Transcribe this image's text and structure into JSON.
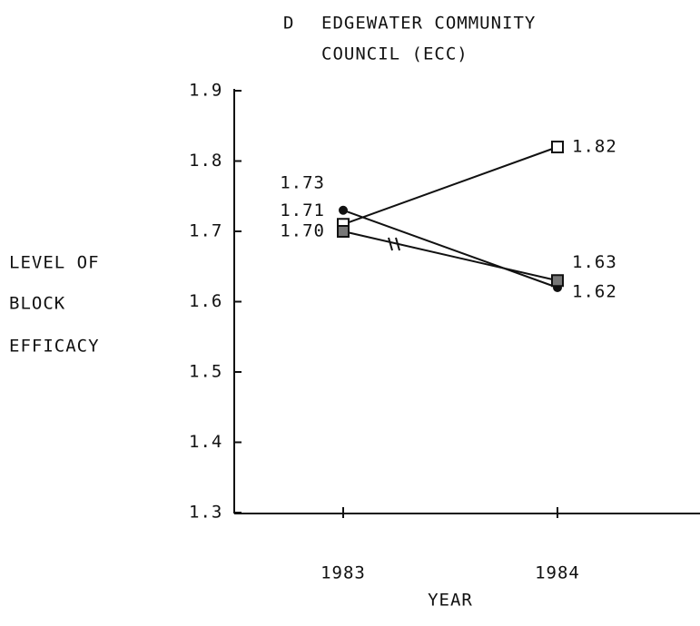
{
  "chart_data": {
    "type": "line",
    "title_letter": "D",
    "title": [
      "EDGEWATER COMMUNITY",
      "COUNCIL (ECC)"
    ],
    "y_label": [
      "LEVEL OF",
      "BLOCK",
      "EFFICACY"
    ],
    "x_label": "YEAR",
    "categories": [
      "1983",
      "1984"
    ],
    "ylim": [
      1.3,
      1.9
    ],
    "yticks": [
      1.3,
      1.4,
      1.5,
      1.6,
      1.7,
      1.8,
      1.9
    ],
    "series": [
      {
        "color": "#111111",
        "marker": "open-square",
        "values": [
          1.71,
          1.82
        ],
        "value_labels": [
          "1.71",
          "1.82"
        ]
      },
      {
        "color": "#111111",
        "marker": "circle",
        "values": [
          1.73,
          1.62
        ],
        "value_labels": [
          "1.73",
          "1.62"
        ]
      },
      {
        "color": "#111111",
        "marker": "filled-square",
        "values": [
          1.7,
          1.63
        ],
        "value_labels": [
          "1.70",
          "1.63"
        ]
      }
    ]
  }
}
